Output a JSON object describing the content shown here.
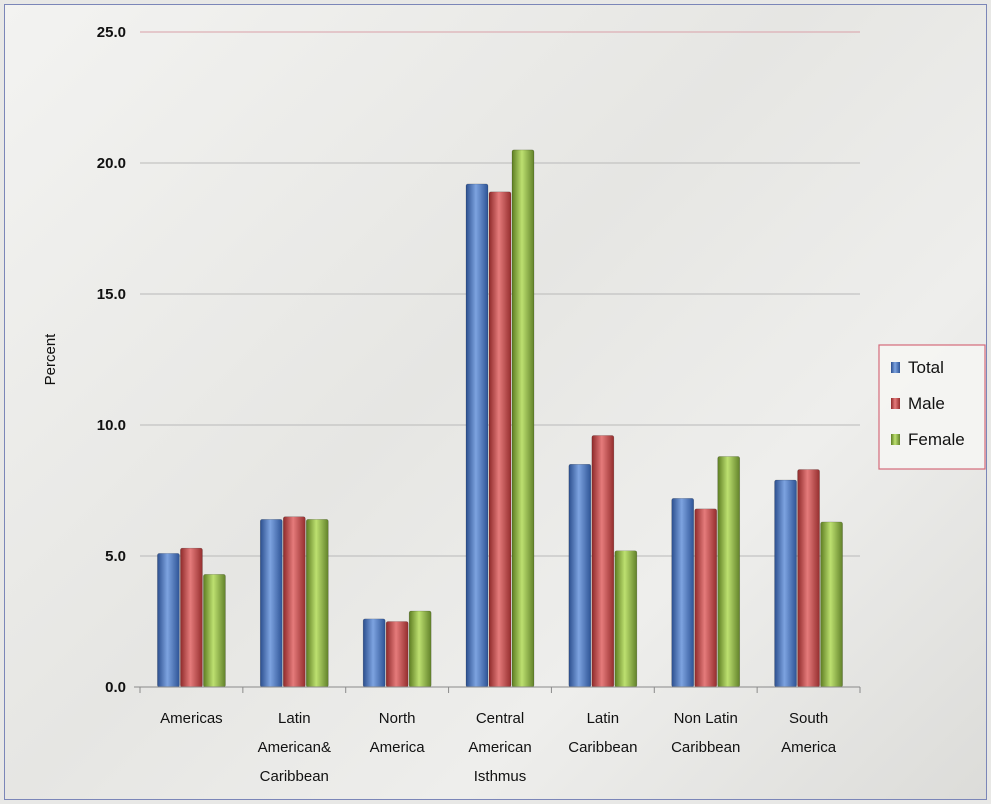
{
  "chart_data": {
    "type": "bar",
    "title": "",
    "xlabel": "",
    "ylabel": "Percent",
    "ylim": [
      0,
      25
    ],
    "yticks": [
      "0.0",
      "5.0",
      "10.0",
      "15.0",
      "20.0",
      "25.0"
    ],
    "categories": [
      [
        "Americas"
      ],
      [
        "Latin",
        "American&",
        "Caribbean"
      ],
      [
        "North",
        "America"
      ],
      [
        "Central",
        "American",
        "Isthmus"
      ],
      [
        "Latin",
        "Caribbean"
      ],
      [
        "Non Latin",
        "Caribbean"
      ],
      [
        "South",
        "America"
      ]
    ],
    "series": [
      {
        "name": "Total",
        "color": "#4a78c0",
        "values": [
          5.1,
          6.4,
          2.6,
          19.2,
          8.5,
          7.2,
          7.9
        ]
      },
      {
        "name": "Male",
        "color": "#c84848",
        "values": [
          5.3,
          6.5,
          2.5,
          18.9,
          9.6,
          6.8,
          8.3
        ]
      },
      {
        "name": "Female",
        "color": "#8ab040",
        "values": [
          4.3,
          6.4,
          2.9,
          20.5,
          5.2,
          8.8,
          6.3
        ]
      }
    ],
    "grid": true,
    "legend": "right"
  }
}
